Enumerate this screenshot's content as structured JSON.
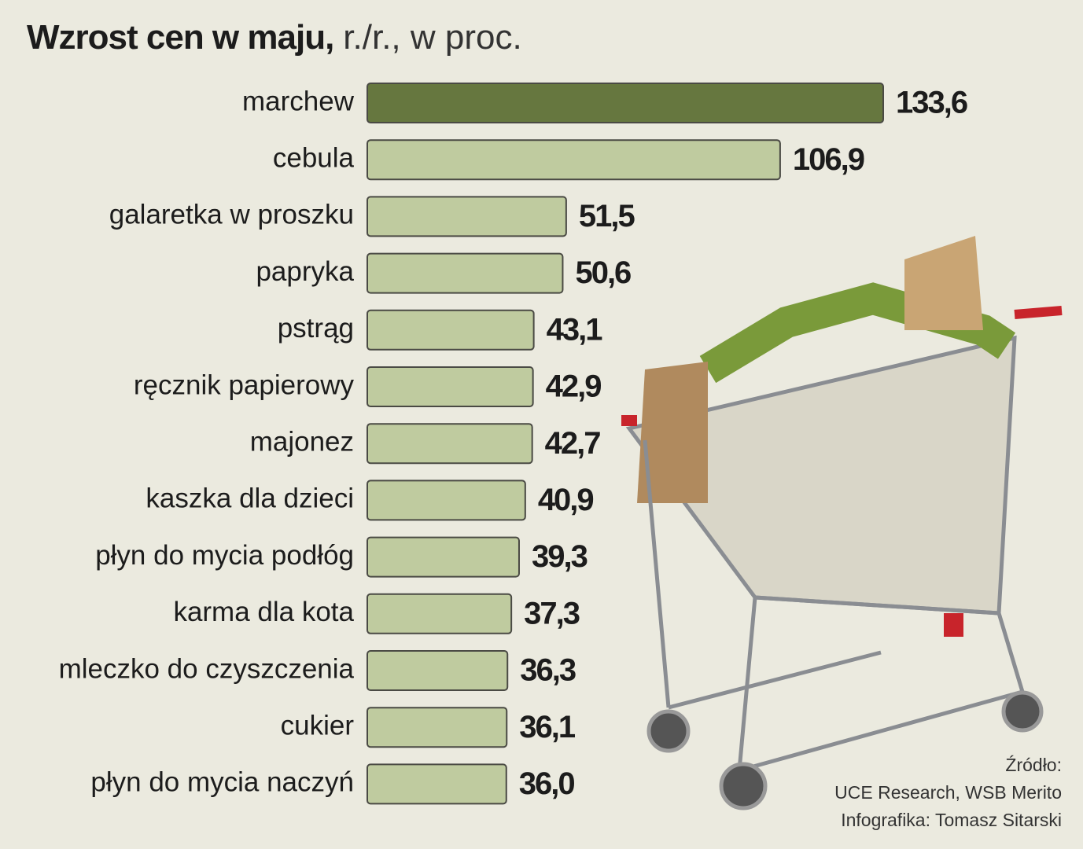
{
  "chart_data": {
    "type": "bar",
    "orientation": "horizontal",
    "title": "Wzrost cen w maju,",
    "subtitle": "r./r., w proc.",
    "categories": [
      "marchew",
      "cebula",
      "galaretka w proszku",
      "papryka",
      "pstrąg",
      "ręcznik papierowy",
      "majonez",
      "kaszka dla dzieci",
      "płyn do mycia podłóg",
      "karma dla kota",
      "mleczko do czyszczenia",
      "cukier",
      "płyn do mycia naczyń"
    ],
    "values": [
      133.6,
      106.9,
      51.5,
      50.6,
      43.1,
      42.9,
      42.7,
      40.9,
      39.3,
      37.3,
      36.3,
      36.1,
      36.0
    ],
    "value_labels": [
      "133,6",
      "106,9",
      "51,5",
      "50,6",
      "43,1",
      "42,9",
      "42,7",
      "40,9",
      "39,3",
      "37,3",
      "36,3",
      "36,1",
      "36,0"
    ],
    "colors": [
      "#66773f",
      "#bfcb9f",
      "#bfcb9f",
      "#bfcb9f",
      "#bfcb9f",
      "#bfcb9f",
      "#bfcb9f",
      "#bfcb9f",
      "#bfcb9f",
      "#bfcb9f",
      "#bfcb9f",
      "#bfcb9f",
      "#bfcb9f"
    ],
    "source": [
      "Źródło:",
      "UCE Research, WSB Merito",
      "Infografika: Tomasz Sitarski"
    ]
  }
}
